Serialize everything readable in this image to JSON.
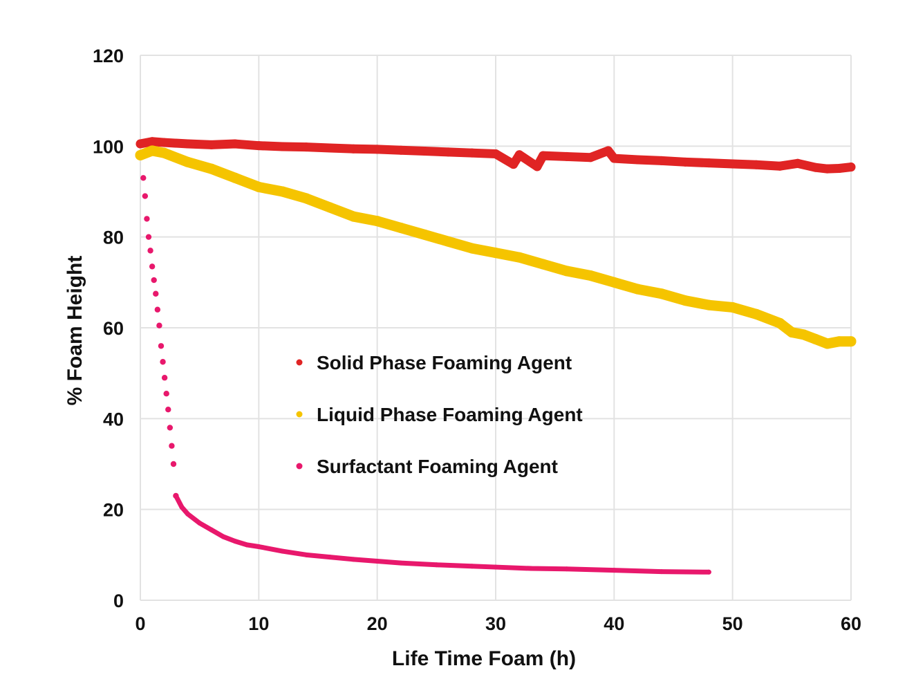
{
  "chart_data": {
    "type": "scatter",
    "title": "",
    "xlabel": "Life Time Foam (h)",
    "ylabel": "% Foam Height",
    "xlim": [
      0,
      60
    ],
    "ylim": [
      0,
      120
    ],
    "xticks": [
      0,
      10,
      20,
      30,
      40,
      50,
      60
    ],
    "yticks": [
      0,
      20,
      40,
      60,
      80,
      100,
      120
    ],
    "grid": true,
    "legend_position": "center",
    "series": [
      {
        "name": "Solid Phase Foaming Agent",
        "color": "#e02424",
        "x": [
          0,
          1,
          2,
          4,
          6,
          8,
          10,
          12,
          14,
          16,
          18,
          20,
          22,
          24,
          26,
          28,
          30,
          31.5,
          32,
          33.5,
          34,
          36,
          38,
          39.5,
          40,
          42,
          44,
          46,
          48,
          50,
          52,
          54,
          55.5,
          57,
          58,
          59,
          60
        ],
        "y": [
          100.5,
          101,
          100.8,
          100.5,
          100.3,
          100.5,
          100.1,
          99.9,
          99.8,
          99.6,
          99.4,
          99.3,
          99.1,
          98.9,
          98.7,
          98.5,
          98.3,
          96,
          98.1,
          95.5,
          97.9,
          97.7,
          97.5,
          99,
          97.3,
          97.0,
          96.8,
          96.5,
          96.3,
          96.1,
          95.9,
          95.6,
          96.2,
          95.3,
          95.0,
          95.1,
          95.4
        ]
      },
      {
        "name": "Liquid Phase Foaming Agent",
        "color": "#f5c400",
        "x": [
          0,
          1,
          2,
          4,
          6,
          8,
          10,
          12,
          14,
          16,
          18,
          20,
          22,
          24,
          26,
          28,
          30,
          32,
          34,
          36,
          38,
          40,
          42,
          44,
          46,
          48,
          50,
          52,
          54,
          55,
          56,
          57,
          58,
          59,
          60
        ],
        "y": [
          98,
          99,
          98.5,
          96.5,
          95,
          93,
          91,
          90,
          88.5,
          86.5,
          84.5,
          83.5,
          82,
          80.5,
          79,
          77.5,
          76.5,
          75.5,
          74,
          72.5,
          71.5,
          70,
          68.5,
          67.5,
          66,
          65,
          64.5,
          63,
          61,
          59,
          58.5,
          57.5,
          56.5,
          57,
          57
        ]
      },
      {
        "name": "Surfactant Foaming Agent",
        "color": "#e8186c",
        "x": [
          0.25,
          0.4,
          0.55,
          0.7,
          0.85,
          1.0,
          1.15,
          1.3,
          1.45,
          1.6,
          1.75,
          1.9,
          2.05,
          2.2,
          2.35,
          2.5,
          2.65,
          2.8,
          3,
          3.5,
          4,
          5,
          6,
          7,
          8,
          9,
          10,
          12,
          14,
          16,
          18,
          20,
          22,
          25,
          28,
          30,
          33,
          36,
          40,
          44,
          48
        ],
        "y": [
          93,
          89,
          84,
          80,
          77,
          73.5,
          70.5,
          67.5,
          64,
          60.5,
          56,
          52.5,
          49,
          45.5,
          42,
          38,
          34,
          30,
          23,
          20.5,
          19,
          17,
          15.5,
          14,
          13,
          12.2,
          11.8,
          10.8,
          10.0,
          9.5,
          9.0,
          8.6,
          8.2,
          7.8,
          7.5,
          7.3,
          7.0,
          6.9,
          6.6,
          6.3,
          6.2
        ]
      }
    ]
  }
}
